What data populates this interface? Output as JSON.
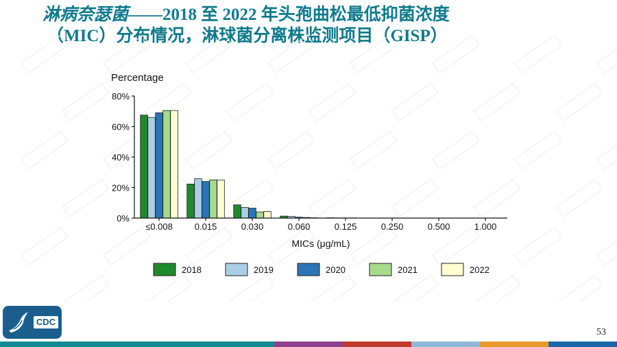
{
  "slide": {
    "title_italic": "淋病奈瑟菌",
    "title_line1_rest": "——2018 至 2022 年头孢曲松最低抑菌浓度",
    "title_line2": "（MIC）分布情况，淋球菌分离株监测项目（GISP）",
    "page_number": "53",
    "logo_text": "CDC"
  },
  "colors": {
    "title": "#0f7a8c",
    "logo_bg": "#1a5e8e",
    "footer": [
      "#138a93",
      "#138a93",
      "#138a93",
      "#138a93",
      "#8f3f8f",
      "#c03a2b",
      "#8fb8d8",
      "#e99a2c",
      "#1b66a8"
    ]
  },
  "chart_data": {
    "type": "bar",
    "title": "",
    "ylabel": "Percentage",
    "xlabel": "MICs (μg/mL)",
    "ylim": [
      0,
      80
    ],
    "yticks": [
      "0%",
      "20%",
      "40%",
      "60%",
      "80%"
    ],
    "grid": false,
    "legend_position": "bottom",
    "categories": [
      "≤0.008",
      "0.015",
      "0.030",
      "0.060",
      "0.125",
      "0.250",
      "0.500",
      "1.000"
    ],
    "series": [
      {
        "name": "2018",
        "color": "#1e8a2c",
        "values": [
          67.5,
          22.3,
          8.7,
          1.3,
          0.2,
          0.05,
          0,
          0
        ]
      },
      {
        "name": "2019",
        "color": "#a8cfe6",
        "values": [
          66.0,
          25.8,
          7.0,
          1.1,
          0.1,
          0.03,
          0,
          0
        ]
      },
      {
        "name": "2020",
        "color": "#2b74b7",
        "values": [
          69.0,
          24.0,
          6.5,
          0.6,
          0.1,
          0.02,
          0,
          0
        ]
      },
      {
        "name": "2021",
        "color": "#a6db8c",
        "values": [
          70.5,
          25.0,
          4.0,
          0.4,
          0.1,
          0.02,
          0,
          0
        ]
      },
      {
        "name": "2022",
        "color": "#fefed2",
        "values": [
          70.5,
          25.0,
          4.3,
          0.2,
          0.05,
          0.01,
          0,
          0
        ]
      }
    ]
  }
}
